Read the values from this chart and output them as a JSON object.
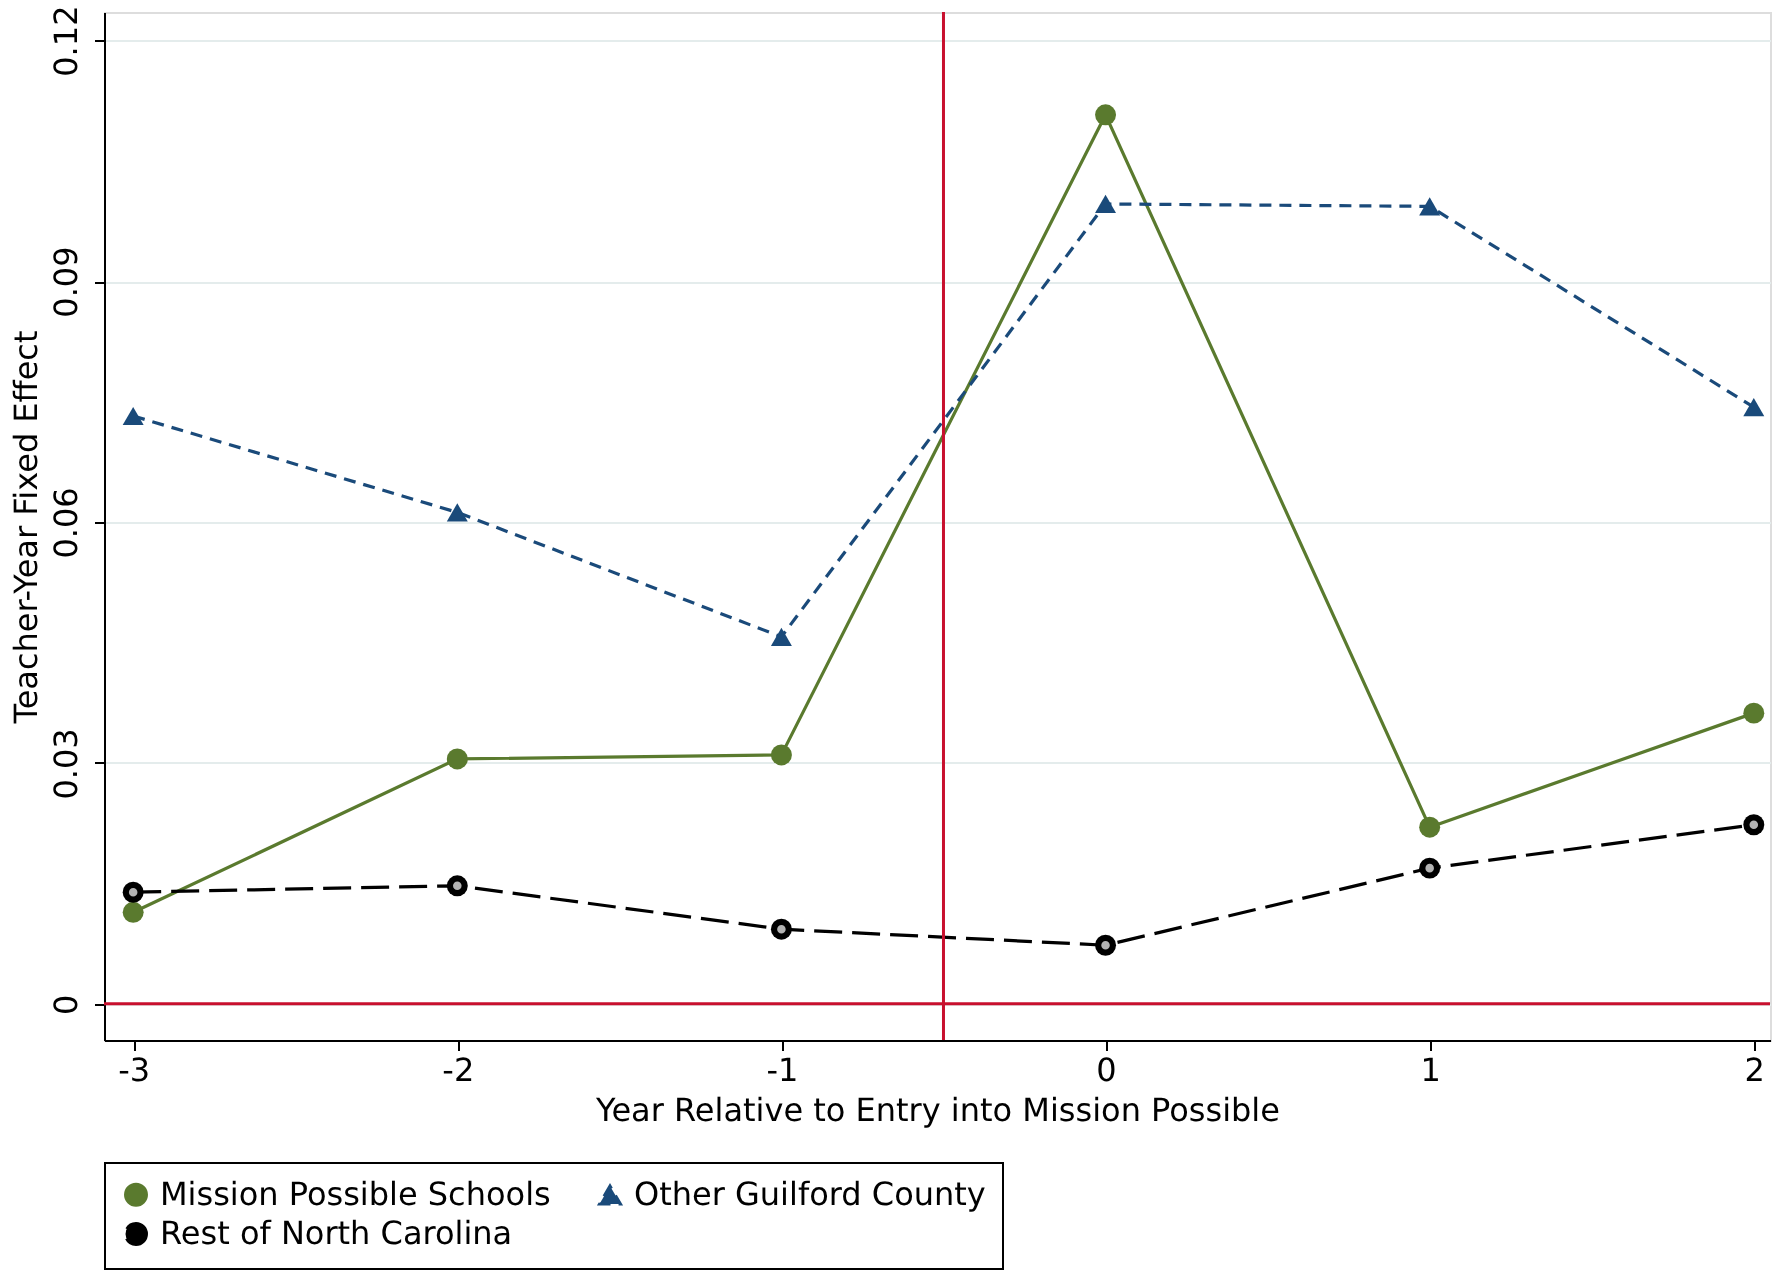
{
  "chart_data": {
    "type": "line",
    "xlabel": "Year Relative to Entry into Mission Possible",
    "ylabel": "Teacher-Year Fixed Effect",
    "x": [
      -3,
      -2,
      -1,
      0,
      1,
      2
    ],
    "series": [
      {
        "name": "Mission Possible Schools",
        "color": "#5a7a2e",
        "marker": "circle",
        "line_style": "solid",
        "values": [
          0.0114,
          0.0305,
          0.031,
          0.1107,
          0.022,
          0.0362
        ]
      },
      {
        "name": "Other Guilford County",
        "color": "#1a4a7a",
        "marker": "triangle",
        "line_style": "dashed",
        "values": [
          0.0732,
          0.0612,
          0.0457,
          0.0996,
          0.0993,
          0.0743
        ]
      },
      {
        "name": "Rest of North Carolina",
        "color": "#000000",
        "marker": "circle",
        "line_style": "dashed",
        "values": [
          0.0139,
          0.0147,
          0.0093,
          0.0073,
          0.0169,
          0.0223
        ]
      }
    ],
    "xlim": [
      -3.09,
      2.05
    ],
    "xticks": [
      -3,
      -2,
      -1,
      0,
      1,
      2
    ],
    "ylim": [
      -0.0045,
      0.1235
    ],
    "yticks": [
      0,
      0.03,
      0.06,
      0.09,
      0.12
    ],
    "ref_lines": [
      {
        "axis": "x",
        "value": -0.5,
        "color": "#c8102e"
      },
      {
        "axis": "y",
        "value": 0,
        "color": "#c8102e"
      }
    ],
    "grid": "y",
    "legend": "bottom"
  }
}
